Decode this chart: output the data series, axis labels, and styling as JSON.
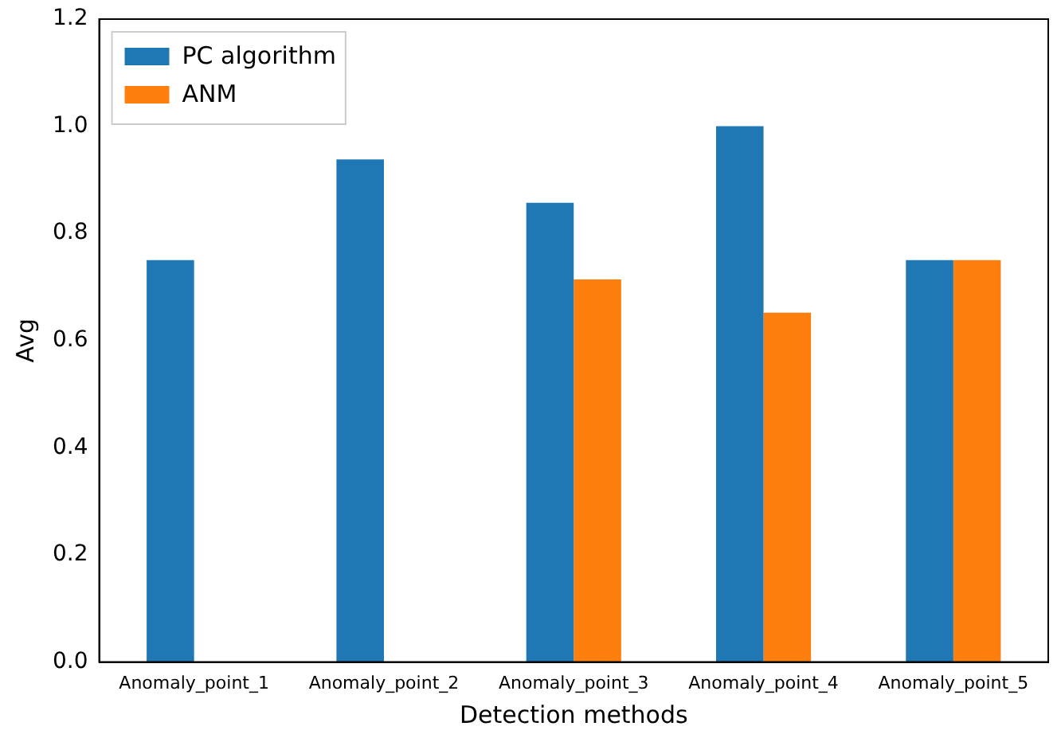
{
  "chart_data": {
    "type": "bar",
    "xlabel": "Detection methods",
    "ylabel": "Avg",
    "categories": [
      "Anomaly_point_1",
      "Anomaly_point_2",
      "Anomaly_point_3",
      "Anomaly_point_4",
      "Anomaly_point_5"
    ],
    "series": [
      {
        "name": "PC algorithm",
        "color": "#1f77b4",
        "values": [
          0.75,
          0.938,
          0.857,
          1.0,
          0.75
        ]
      },
      {
        "name": "ANM",
        "color": "#ff7f0e",
        "values": [
          0,
          0,
          0.714,
          0.652,
          0.75
        ]
      }
    ],
    "ylim": [
      0,
      1.2
    ],
    "yticks": [
      {
        "value": 0,
        "label": "0.0"
      },
      0.2,
      0.4,
      0.6,
      0.8,
      {
        "value": 1,
        "label": "1.0"
      },
      1.2
    ],
    "grid": false,
    "legend": "top left"
  }
}
